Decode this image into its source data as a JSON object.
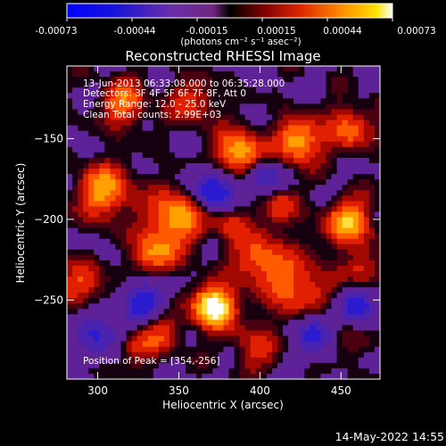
{
  "colorbar": {
    "ticks": [
      "-0.00073",
      "-0.00044",
      "-0.00015",
      "0.00015",
      "0.00044",
      "0.00073"
    ],
    "units_label": "(photons cm⁻² s⁻¹ asec⁻²)"
  },
  "chart_data": {
    "type": "heatmap",
    "title": "Reconstructed RHESSI Image",
    "xlabel": "Heliocentric X (arcsec)",
    "ylabel": "Heliocentric Y (arcsec)",
    "xlim": [
      281,
      474
    ],
    "ylim": [
      -299,
      -105
    ],
    "x_ticks": [
      300,
      350,
      400,
      450
    ],
    "y_ticks": [
      -150,
      -200,
      -250
    ],
    "value_range": [
      -0.00073,
      0.00073
    ],
    "peak": {
      "x": 354,
      "y": -256
    },
    "annotations": [
      "13-Jun-2013 06:33:08.000 to 06:35:28.000",
      "Detectors: 3F 4F 5F 6F 7F 8F, Att 0",
      "Energy Range: 12.0 - 25.0 keV",
      "Clean     Total counts: 2.99E+03"
    ],
    "peak_label": "Position of Peak = [354,-256]"
  },
  "footer": {
    "timestamp": "14-May-2022 14:55"
  }
}
